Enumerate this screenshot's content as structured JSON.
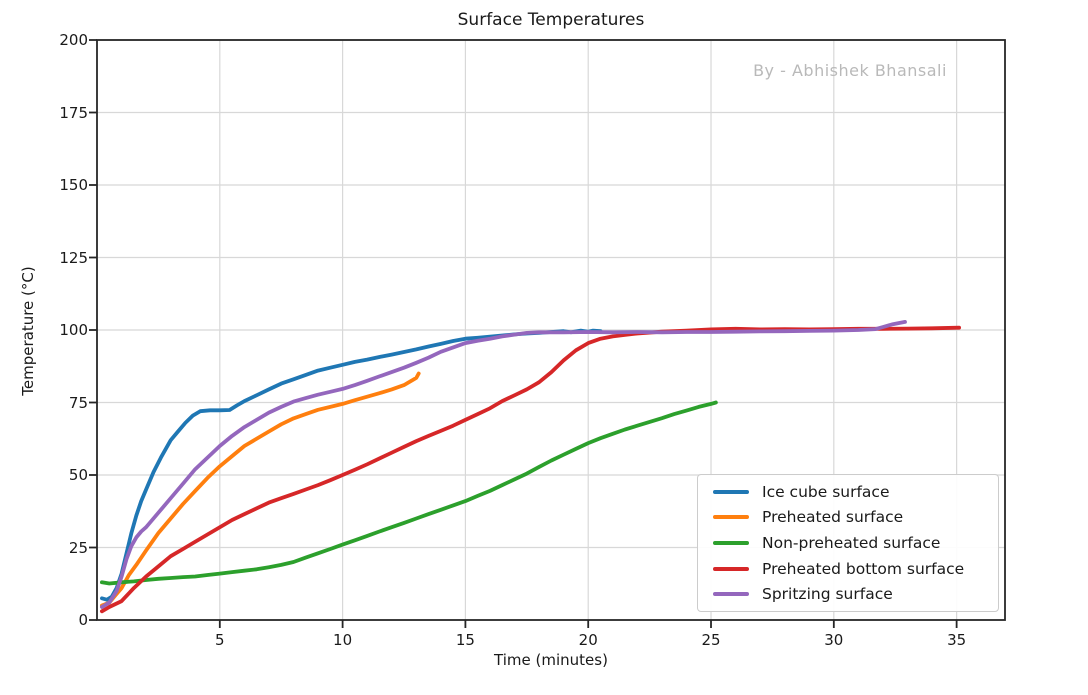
{
  "chart_data": {
    "type": "line",
    "title": "Surface Temperatures",
    "watermark": "By - Abhishek Bhansali",
    "xlabel": "Time (minutes)",
    "ylabel": "Temperature (°C)",
    "xlim": [
      0,
      36.97
    ],
    "ylim": [
      0,
      200
    ],
    "xticks": [
      5,
      10,
      15,
      20,
      25,
      30,
      35
    ],
    "yticks": [
      0,
      25,
      50,
      75,
      100,
      125,
      150,
      175,
      200
    ],
    "grid": true,
    "legend_position": "lower right",
    "colors": {
      "text": "#1a1a1a",
      "grid": "#d8d8d8",
      "spine": "#262626",
      "watermark": "#b9b9b9",
      "legend_border": "#cccccc"
    },
    "series": [
      {
        "name": "Ice cube surface",
        "color": "#1f77b4",
        "points": [
          [
            0.2,
            7.5
          ],
          [
            0.4,
            7
          ],
          [
            0.6,
            8
          ],
          [
            0.8,
            11
          ],
          [
            1,
            16
          ],
          [
            1.2,
            23
          ],
          [
            1.4,
            30
          ],
          [
            1.6,
            36
          ],
          [
            1.8,
            41
          ],
          [
            2,
            45
          ],
          [
            2.3,
            51
          ],
          [
            2.6,
            56
          ],
          [
            3,
            62
          ],
          [
            3.3,
            65
          ],
          [
            3.6,
            68
          ],
          [
            3.9,
            70.5
          ],
          [
            4.2,
            72
          ],
          [
            4.6,
            72.3
          ],
          [
            5,
            72.3
          ],
          [
            5.4,
            72.4
          ],
          [
            5.7,
            74
          ],
          [
            6,
            75.5
          ],
          [
            6.5,
            77.5
          ],
          [
            7,
            79.5
          ],
          [
            7.5,
            81.5
          ],
          [
            8,
            83
          ],
          [
            8.5,
            84.5
          ],
          [
            9,
            86
          ],
          [
            9.5,
            87
          ],
          [
            10,
            88
          ],
          [
            10.5,
            89
          ],
          [
            11,
            89.8
          ],
          [
            11.5,
            90.7
          ],
          [
            12,
            91.5
          ],
          [
            12.5,
            92.4
          ],
          [
            13,
            93.3
          ],
          [
            13.5,
            94.3
          ],
          [
            14,
            95.2
          ],
          [
            14.5,
            96.2
          ],
          [
            15,
            97
          ],
          [
            15.5,
            97.3
          ],
          [
            16,
            97.7
          ],
          [
            16.5,
            98.1
          ],
          [
            17,
            98.5
          ],
          [
            17.5,
            98.8
          ],
          [
            18,
            99
          ],
          [
            18.5,
            99.3
          ],
          [
            19,
            99.6
          ],
          [
            19.3,
            99.2
          ],
          [
            19.7,
            99.8
          ],
          [
            20,
            99.4
          ],
          [
            20.2,
            99.8
          ],
          [
            20.5,
            99.6
          ]
        ]
      },
      {
        "name": "Preheated surface",
        "color": "#ff7f0e",
        "points": [
          [
            0.2,
            5
          ],
          [
            0.5,
            6
          ],
          [
            0.8,
            9
          ],
          [
            1,
            11
          ],
          [
            1.3,
            15.5
          ],
          [
            1.6,
            19
          ],
          [
            2,
            24
          ],
          [
            2.5,
            30
          ],
          [
            3,
            35
          ],
          [
            3.5,
            40
          ],
          [
            4,
            44.5
          ],
          [
            4.5,
            49
          ],
          [
            5,
            53
          ],
          [
            5.5,
            56.5
          ],
          [
            6,
            60
          ],
          [
            6.5,
            62.5
          ],
          [
            7,
            65
          ],
          [
            7.5,
            67.5
          ],
          [
            8,
            69.5
          ],
          [
            8.5,
            71
          ],
          [
            9,
            72.5
          ],
          [
            9.5,
            73.5
          ],
          [
            10,
            74.5
          ],
          [
            10.5,
            75.8
          ],
          [
            11,
            77
          ],
          [
            11.5,
            78.2
          ],
          [
            12,
            79.5
          ],
          [
            12.5,
            81
          ],
          [
            13,
            83.5
          ],
          [
            13.1,
            85
          ]
        ]
      },
      {
        "name": "Non-preheated surface",
        "color": "#2ca02c",
        "points": [
          [
            0.2,
            13
          ],
          [
            0.5,
            12.6
          ],
          [
            1,
            13
          ],
          [
            1.5,
            13.3
          ],
          [
            2,
            13.8
          ],
          [
            2.5,
            14.2
          ],
          [
            3,
            14.5
          ],
          [
            3.5,
            14.8
          ],
          [
            4,
            15
          ],
          [
            4.5,
            15.5
          ],
          [
            5,
            16
          ],
          [
            5.5,
            16.5
          ],
          [
            6,
            17
          ],
          [
            6.5,
            17.5
          ],
          [
            7,
            18.2
          ],
          [
            7.5,
            19
          ],
          [
            8,
            20
          ],
          [
            8.5,
            21.5
          ],
          [
            9,
            23
          ],
          [
            9.5,
            24.5
          ],
          [
            10,
            26
          ],
          [
            10.5,
            27.5
          ],
          [
            11,
            29
          ],
          [
            11.5,
            30.5
          ],
          [
            12,
            32
          ],
          [
            12.5,
            33.5
          ],
          [
            13,
            35
          ],
          [
            13.5,
            36.5
          ],
          [
            14,
            38
          ],
          [
            14.5,
            39.5
          ],
          [
            15,
            41
          ],
          [
            15.5,
            42.8
          ],
          [
            16,
            44.5
          ],
          [
            16.5,
            46.5
          ],
          [
            17,
            48.5
          ],
          [
            17.5,
            50.5
          ],
          [
            18,
            52.8
          ],
          [
            18.5,
            55
          ],
          [
            19,
            57
          ],
          [
            19.5,
            59
          ],
          [
            20,
            61
          ],
          [
            20.5,
            62.7
          ],
          [
            21,
            64.2
          ],
          [
            21.5,
            65.7
          ],
          [
            22,
            67
          ],
          [
            22.5,
            68.3
          ],
          [
            23,
            69.6
          ],
          [
            23.5,
            71
          ],
          [
            24,
            72.2
          ],
          [
            24.5,
            73.5
          ],
          [
            25,
            74.5
          ],
          [
            25.2,
            75
          ]
        ]
      },
      {
        "name": "Preheated bottom surface",
        "color": "#d62728",
        "points": [
          [
            0.2,
            3
          ],
          [
            0.5,
            4.5
          ],
          [
            1,
            6.5
          ],
          [
            1.5,
            11
          ],
          [
            2,
            15
          ],
          [
            2.5,
            18.5
          ],
          [
            3,
            22
          ],
          [
            3.5,
            24.5
          ],
          [
            4,
            27
          ],
          [
            4.5,
            29.5
          ],
          [
            5,
            32
          ],
          [
            5.5,
            34.5
          ],
          [
            6,
            36.5
          ],
          [
            6.5,
            38.5
          ],
          [
            7,
            40.5
          ],
          [
            7.5,
            42
          ],
          [
            8,
            43.5
          ],
          [
            8.5,
            45
          ],
          [
            9,
            46.5
          ],
          [
            9.5,
            48.2
          ],
          [
            10,
            50
          ],
          [
            10.5,
            51.8
          ],
          [
            11,
            53.7
          ],
          [
            11.5,
            55.7
          ],
          [
            12,
            57.7
          ],
          [
            12.5,
            59.7
          ],
          [
            13,
            61.7
          ],
          [
            13.5,
            63.5
          ],
          [
            14,
            65.2
          ],
          [
            14.5,
            67
          ],
          [
            15,
            69
          ],
          [
            15.5,
            71
          ],
          [
            16,
            73
          ],
          [
            16.5,
            75.5
          ],
          [
            17,
            77.5
          ],
          [
            17.5,
            79.5
          ],
          [
            18,
            82
          ],
          [
            18.5,
            85.5
          ],
          [
            19,
            89.5
          ],
          [
            19.5,
            93
          ],
          [
            20,
            95.5
          ],
          [
            20.5,
            97
          ],
          [
            21,
            97.8
          ],
          [
            21.5,
            98.3
          ],
          [
            22,
            98.8
          ],
          [
            23,
            99.4
          ],
          [
            24,
            99.8
          ],
          [
            25,
            100.2
          ],
          [
            26,
            100.4
          ],
          [
            27,
            100.2
          ],
          [
            28,
            100.3
          ],
          [
            29,
            100.2
          ],
          [
            30,
            100.3
          ],
          [
            31,
            100.4
          ],
          [
            32,
            100.4
          ],
          [
            33,
            100.5
          ],
          [
            34,
            100.6
          ],
          [
            35.1,
            100.8
          ]
        ]
      },
      {
        "name": "Spritzing surface",
        "color": "#9467bd",
        "points": [
          [
            0.2,
            4.5
          ],
          [
            0.5,
            6
          ],
          [
            0.8,
            10
          ],
          [
            1,
            15
          ],
          [
            1.2,
            21
          ],
          [
            1.4,
            25.5
          ],
          [
            1.6,
            28.5
          ],
          [
            1.8,
            30.5
          ],
          [
            2,
            32
          ],
          [
            2.5,
            37
          ],
          [
            3,
            42
          ],
          [
            3.5,
            47
          ],
          [
            4,
            52
          ],
          [
            4.5,
            56
          ],
          [
            5,
            60
          ],
          [
            5.5,
            63.5
          ],
          [
            6,
            66.5
          ],
          [
            6.5,
            69
          ],
          [
            7,
            71.5
          ],
          [
            7.5,
            73.5
          ],
          [
            8,
            75.3
          ],
          [
            8.5,
            76.5
          ],
          [
            9,
            77.7
          ],
          [
            9.5,
            78.7
          ],
          [
            10,
            79.7
          ],
          [
            10.5,
            81
          ],
          [
            11,
            82.5
          ],
          [
            11.5,
            84
          ],
          [
            12,
            85.5
          ],
          [
            12.5,
            87
          ],
          [
            13,
            88.7
          ],
          [
            13.5,
            90.5
          ],
          [
            14,
            92.5
          ],
          [
            14.5,
            94
          ],
          [
            15,
            95.5
          ],
          [
            15.5,
            96.3
          ],
          [
            16,
            97
          ],
          [
            16.5,
            97.8
          ],
          [
            17,
            98.4
          ],
          [
            17.5,
            99
          ],
          [
            18,
            99.2
          ],
          [
            19,
            99.2
          ],
          [
            20,
            99.3
          ],
          [
            21,
            99.2
          ],
          [
            22,
            99.3
          ],
          [
            23,
            99.2
          ],
          [
            24,
            99.3
          ],
          [
            25,
            99.3
          ],
          [
            26,
            99.4
          ],
          [
            27,
            99.5
          ],
          [
            28,
            99.6
          ],
          [
            29,
            99.7
          ],
          [
            30,
            99.8
          ],
          [
            31,
            100
          ],
          [
            31.7,
            100.3
          ],
          [
            32,
            101
          ],
          [
            32.4,
            102
          ],
          [
            32.9,
            102.8
          ]
        ]
      }
    ]
  }
}
